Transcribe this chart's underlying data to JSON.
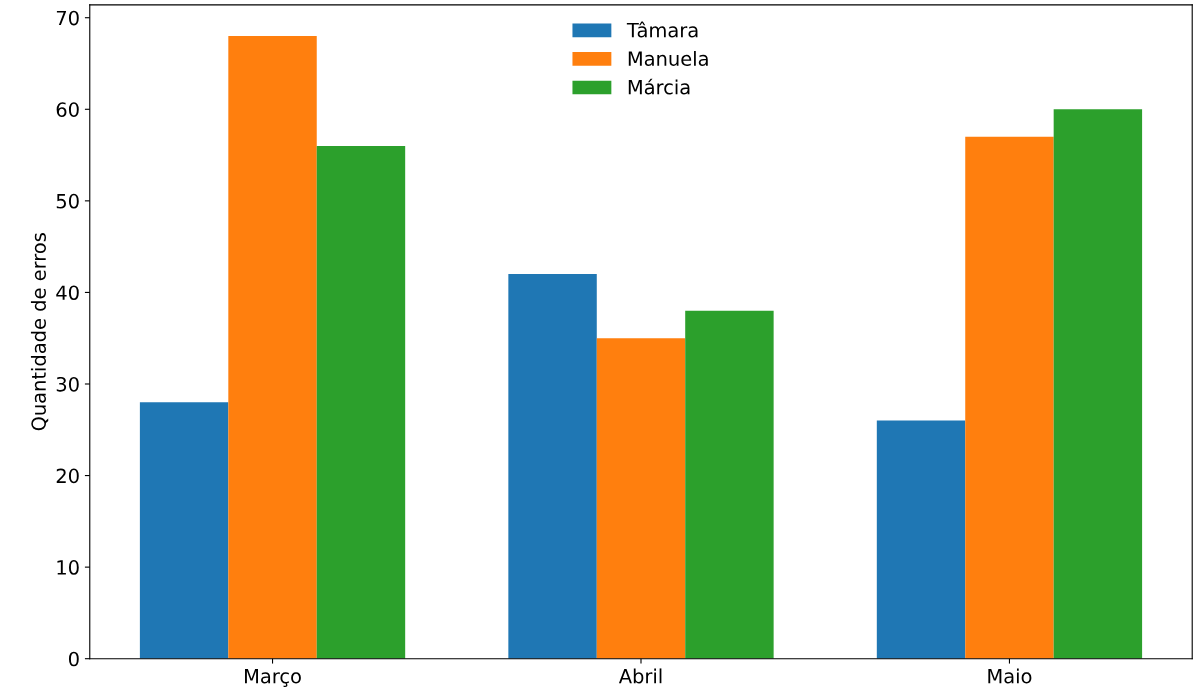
{
  "chart_data": {
    "type": "bar",
    "ylabel": "Quantidade de erros",
    "categories": [
      "Março",
      "Abril",
      "Maio"
    ],
    "series": [
      {
        "name": "Tâmara",
        "color": "#1f77b4",
        "values": [
          28,
          42,
          26
        ]
      },
      {
        "name": "Manuela",
        "color": "#ff7f0e",
        "values": [
          68,
          35,
          57
        ]
      },
      {
        "name": "Márcia",
        "color": "#2ca02c",
        "values": [
          56,
          38,
          60
        ]
      }
    ],
    "ylim": [
      0,
      71.4
    ],
    "yticks": [
      0,
      10,
      20,
      30,
      40,
      50,
      60,
      70
    ],
    "grid": false,
    "legend": "top"
  }
}
